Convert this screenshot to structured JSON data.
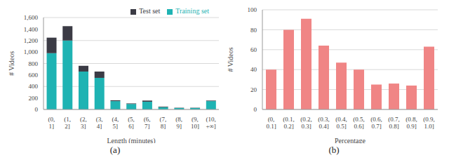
{
  "chart_data": [
    {
      "type": "bar",
      "title": "(a)",
      "x_label": "Length (minutes)",
      "y_label": "# Videos",
      "categories": [
        "(0, 1]",
        "(1, 2]",
        "(2, 3]",
        "(3, 4]",
        "(4, 5]",
        "(5, 6]",
        "(6, 7]",
        "(7, 8]",
        "(8, 9]",
        "(9, 10]",
        "(10, +∞]"
      ],
      "series": [
        {
          "name": "Training set",
          "color": "#1fb3b3",
          "values": [
            980,
            1200,
            660,
            550,
            145,
            95,
            135,
            40,
            25,
            25,
            145
          ]
        },
        {
          "name": "Test set",
          "color": "#3b3b45",
          "values": [
            270,
            250,
            100,
            110,
            15,
            10,
            20,
            10,
            5,
            5,
            10
          ]
        }
      ],
      "stacked": true,
      "legend": "upper right",
      "grid": true,
      "ylim": [
        0,
        1600
      ],
      "yticks": [
        0,
        200,
        400,
        600,
        800,
        {
          "value": 1000,
          "label": "1,000"
        },
        {
          "value": 1200,
          "label": "1,200"
        },
        {
          "value": 1400,
          "label": "1,400"
        },
        {
          "value": 1600,
          "label": "1,600"
        }
      ]
    },
    {
      "type": "bar",
      "title": "(b)",
      "x_label": "Percentage",
      "y_label": "# Videos",
      "categories": [
        "(0, 0.1]",
        "(0.1, 0.2]",
        "(0.2, 0.3]",
        "(0.3, 0.4]",
        "(0.4, 0.5]",
        "(0.5, 0.6]",
        "(0.6, 0.7]",
        "(0.7, 0.8]",
        "(0.8, 0.9]",
        "(0.9, 1.0]"
      ],
      "values": [
        40,
        80,
        91,
        64,
        47,
        40,
        25,
        26,
        24,
        63
      ],
      "color": "#f08585",
      "grid": true,
      "ylim": [
        0,
        100
      ],
      "yticks": [
        0,
        20,
        40,
        60,
        80,
        100
      ]
    }
  ]
}
